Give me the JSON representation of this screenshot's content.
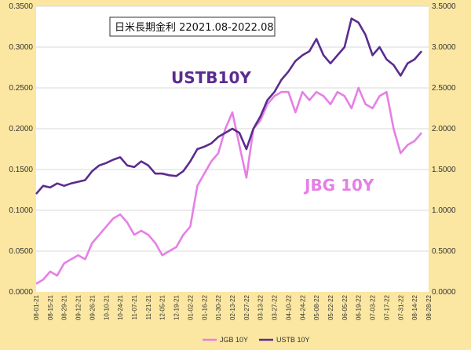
{
  "chart_data": {
    "type": "line",
    "title": "日米長期金利 22021.08-2022.08",
    "colors": {
      "outer_background": "#FBE7A1",
      "plot_background": "#FFFFFF",
      "gridline": "#D9D9D9"
    },
    "legend_position": "bottom",
    "grid": true,
    "x_tick_labels": [
      "08-01-21",
      "08-15-21",
      "08-29-21",
      "09-12-21",
      "09-26-21",
      "10-10-21",
      "10-24-21",
      "11-07-21",
      "11-21-21",
      "12-05-21",
      "12-19-21",
      "01-02-22",
      "01-16-22",
      "01-30-22",
      "02-13-22",
      "02-27-22",
      "03-13-22",
      "03-27-22",
      "04-10-22",
      "04-24-22",
      "05-08-22",
      "05-22-22",
      "06-05-22",
      "06-19-22",
      "07-03-22",
      "07-17-22",
      "07-31-22",
      "08-14-22",
      "08-28-22"
    ],
    "y_left": {
      "min": 0,
      "max": 0.35,
      "ticks": [
        "0.0000",
        "0.0500",
        "0.1000",
        "0.1500",
        "0.2000",
        "0.2500",
        "0.3000",
        "0.3500"
      ]
    },
    "y_right": {
      "min": 0,
      "max": 3.5,
      "ticks": [
        "0.0000",
        "0.5000",
        "1.0000",
        "1.5000",
        "2.0000",
        "2.5000",
        "3.0000",
        "3.5000"
      ]
    },
    "series": [
      {
        "name": "JGB 10Y",
        "axis": "left",
        "color": "#E67FE6",
        "label": "JBG 10Y",
        "x": [
          "08-01-21",
          "08-08-21",
          "08-15-21",
          "08-22-21",
          "08-29-21",
          "09-05-21",
          "09-12-21",
          "09-19-21",
          "09-26-21",
          "10-03-21",
          "10-10-21",
          "10-17-21",
          "10-24-21",
          "10-31-21",
          "11-07-21",
          "11-14-21",
          "11-21-21",
          "11-28-21",
          "12-05-21",
          "12-12-21",
          "12-19-21",
          "12-26-21",
          "01-02-22",
          "01-09-22",
          "01-16-22",
          "01-23-22",
          "01-30-22",
          "02-06-22",
          "02-13-22",
          "02-20-22",
          "02-27-22",
          "03-06-22",
          "03-13-22",
          "03-20-22",
          "03-27-22",
          "04-03-22",
          "04-10-22",
          "04-17-22",
          "04-24-22",
          "05-01-22",
          "05-08-22",
          "05-15-22",
          "05-22-22",
          "05-29-22",
          "06-05-22",
          "06-12-22",
          "06-19-22",
          "06-26-22",
          "07-03-22",
          "07-10-22",
          "07-17-22",
          "07-24-22",
          "07-31-22",
          "08-07-22",
          "08-14-22",
          "08-21-22"
        ],
        "values": [
          0.01,
          0.015,
          0.025,
          0.02,
          0.035,
          0.04,
          0.045,
          0.04,
          0.06,
          0.07,
          0.08,
          0.09,
          0.095,
          0.085,
          0.07,
          0.075,
          0.07,
          0.06,
          0.045,
          0.05,
          0.055,
          0.07,
          0.08,
          0.13,
          0.145,
          0.16,
          0.17,
          0.2,
          0.22,
          0.18,
          0.14,
          0.2,
          0.21,
          0.23,
          0.24,
          0.245,
          0.245,
          0.22,
          0.245,
          0.235,
          0.245,
          0.24,
          0.23,
          0.245,
          0.24,
          0.225,
          0.25,
          0.23,
          0.225,
          0.24,
          0.245,
          0.2,
          0.17,
          0.18,
          0.185,
          0.195
        ]
      },
      {
        "name": "USTB 10Y",
        "axis": "right",
        "color": "#5B2C8F",
        "label": "USTB10Y",
        "x": [
          "08-01-21",
          "08-08-21",
          "08-15-21",
          "08-22-21",
          "08-29-21",
          "09-05-21",
          "09-12-21",
          "09-19-21",
          "09-26-21",
          "10-03-21",
          "10-10-21",
          "10-17-21",
          "10-24-21",
          "10-31-21",
          "11-07-21",
          "11-14-21",
          "11-21-21",
          "11-28-21",
          "12-05-21",
          "12-12-21",
          "12-19-21",
          "12-26-21",
          "01-02-22",
          "01-09-22",
          "01-16-22",
          "01-23-22",
          "01-30-22",
          "02-06-22",
          "02-13-22",
          "02-20-22",
          "02-27-22",
          "03-06-22",
          "03-13-22",
          "03-20-22",
          "03-27-22",
          "04-03-22",
          "04-10-22",
          "04-17-22",
          "04-24-22",
          "05-01-22",
          "05-08-22",
          "05-15-22",
          "05-22-22",
          "05-29-22",
          "06-05-22",
          "06-12-22",
          "06-19-22",
          "06-26-22",
          "07-03-22",
          "07-10-22",
          "07-17-22",
          "07-24-22",
          "07-31-22",
          "08-07-22",
          "08-14-22",
          "08-21-22"
        ],
        "values": [
          1.2,
          1.3,
          1.28,
          1.33,
          1.3,
          1.33,
          1.35,
          1.37,
          1.48,
          1.55,
          1.58,
          1.62,
          1.65,
          1.55,
          1.53,
          1.6,
          1.55,
          1.45,
          1.45,
          1.43,
          1.42,
          1.48,
          1.6,
          1.75,
          1.78,
          1.82,
          1.9,
          1.95,
          2.0,
          1.95,
          1.75,
          2.0,
          2.15,
          2.35,
          2.45,
          2.6,
          2.7,
          2.83,
          2.9,
          2.95,
          3.1,
          2.9,
          2.8,
          2.9,
          3.0,
          3.35,
          3.3,
          3.15,
          2.9,
          3.0,
          2.85,
          2.78,
          2.65,
          2.8,
          2.85,
          2.95
        ]
      }
    ]
  }
}
